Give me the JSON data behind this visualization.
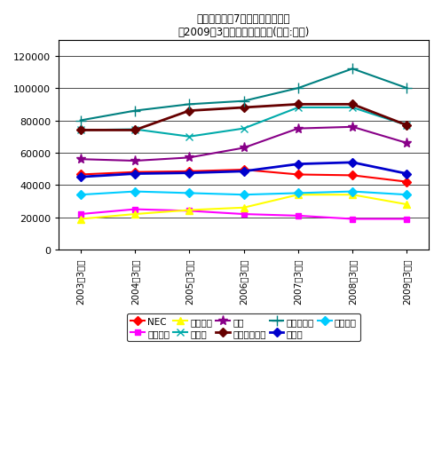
{
  "title_line1": "電機大手直近7年間の売上高推移",
  "title_line2": "（2009年3月期は直近予想）(単位:億円)",
  "years": [
    "2003年3月期",
    "2004年3月期",
    "2005年3月期",
    "2006年3月期",
    "2007年3月期",
    "2008年3月期",
    "2009年3月期"
  ],
  "series_order": [
    "NEC",
    "三洋電機",
    "シャープ",
    "ソニー",
    "東芝",
    "パナソニック",
    "日立製作所",
    "富士通",
    "三菱電機"
  ],
  "series": {
    "NEC": [
      46500,
      48000,
      48500,
      49500,
      46500,
      46000,
      42000
    ],
    "三洋電機": [
      22000,
      25000,
      24000,
      22000,
      21000,
      19000,
      19000
    ],
    "シャープ": [
      19000,
      22000,
      24500,
      26000,
      34000,
      34000,
      28000
    ],
    "ソニー": [
      74000,
      74500,
      70000,
      75000,
      88000,
      88000,
      77000
    ],
    "東芝": [
      56000,
      55000,
      57000,
      63000,
      75000,
      76000,
      66000
    ],
    "パナソニック": [
      74000,
      74000,
      86000,
      88000,
      90000,
      90000,
      77000
    ],
    "日立製作所": [
      80000,
      86000,
      90000,
      92000,
      100000,
      112000,
      100000
    ],
    "富士通": [
      45000,
      47000,
      47500,
      48500,
      53000,
      54000,
      47000
    ],
    "三菱電機": [
      34000,
      36000,
      35000,
      34000,
      35000,
      36000,
      34000
    ]
  },
  "colors": {
    "NEC": "#ff0000",
    "三洋電機": "#ff00ff",
    "シャープ": "#ffff00",
    "ソニー": "#00aaaa",
    "東芝": "#880088",
    "パナソニック": "#660000",
    "日立製作所": "#008080",
    "富士通": "#0000cc",
    "三菱電機": "#00ccff"
  },
  "markers": {
    "NEC": "D",
    "三洋電機": "s",
    "シャープ": "^",
    "ソニー": "x",
    "東芝": "*",
    "パナソニック": "D",
    "日立製作所": "+",
    "富士通": "D",
    "三菱電機": "D"
  },
  "markersizes": {
    "NEC": 5,
    "三洋電機": 5,
    "シャープ": 6,
    "ソニー": 6,
    "東芝": 8,
    "パナソニック": 5,
    "日立製作所": 8,
    "富士通": 5,
    "三菱電機": 5
  },
  "linewidths": {
    "NEC": 1.5,
    "三洋電機": 1.5,
    "シャープ": 1.5,
    "ソニー": 1.5,
    "東芝": 1.5,
    "パナソニック": 2.0,
    "日立製作所": 1.5,
    "富士通": 2.0,
    "三菱電機": 1.5
  },
  "ylim": [
    0,
    130000
  ],
  "yticks": [
    0,
    20000,
    40000,
    60000,
    80000,
    100000,
    120000
  ],
  "figsize": [
    4.98,
    5.1
  ],
  "dpi": 100
}
